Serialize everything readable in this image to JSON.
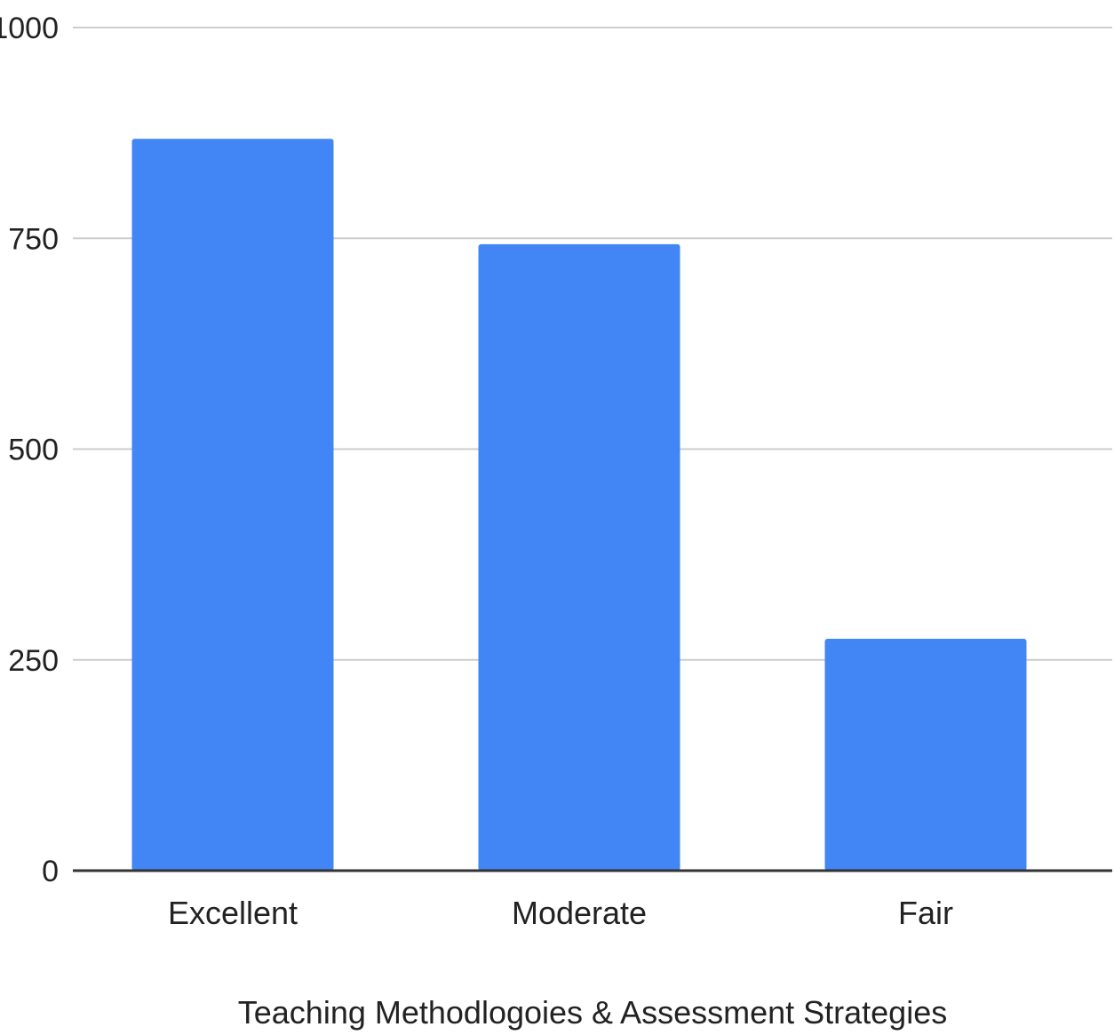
{
  "chart_data": {
    "type": "bar",
    "title": "",
    "xlabel": "Teaching Methodlogoies & Assessment Strategies",
    "ylabel": "",
    "categories": [
      "Excellent",
      "Moderate",
      "Fair"
    ],
    "values": [
      868,
      743,
      275
    ],
    "ylim": [
      0,
      1000
    ],
    "yticks": [
      0,
      250,
      500,
      750,
      1000
    ],
    "grid": true,
    "legend": "none",
    "colors": {
      "bar": "#4285f4",
      "grid": "#cccccc",
      "baseline": "#333333",
      "text": "#222222"
    }
  }
}
